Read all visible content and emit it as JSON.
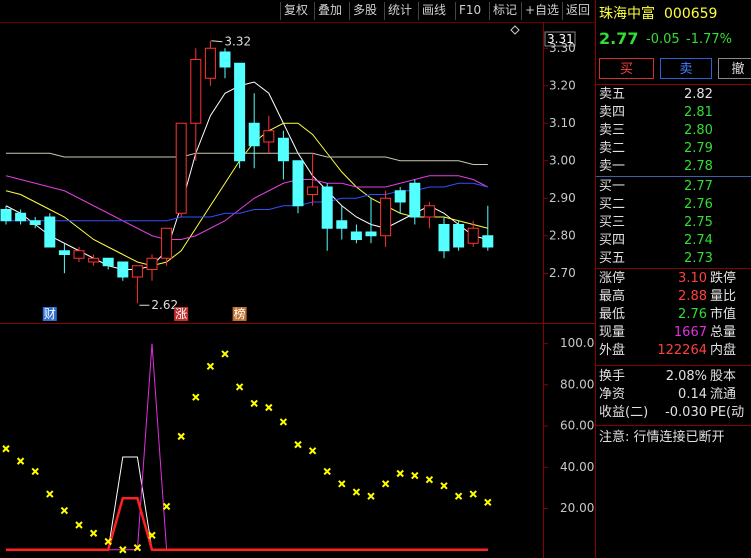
{
  "toolbar": [
    "复权",
    "叠加",
    "多股",
    "统计",
    "画线",
    "F10",
    "标记",
    "+自选",
    "返回"
  ],
  "stock": {
    "name": "珠海中富",
    "code": "000659",
    "price": "2.77",
    "change": "-0.05",
    "change_pct": "-1.77%"
  },
  "trade_buttons": [
    "买",
    "卖",
    "撤"
  ],
  "order_book": {
    "asks": [
      {
        "label": "卖五",
        "price": "2.82",
        "color": "#e0e0e0"
      },
      {
        "label": "卖四",
        "price": "2.81",
        "color": "#33dd33"
      },
      {
        "label": "卖三",
        "price": "2.80",
        "color": "#33dd33"
      },
      {
        "label": "卖二",
        "price": "2.79",
        "color": "#33dd33"
      },
      {
        "label": "卖一",
        "price": "2.78",
        "color": "#33dd33"
      }
    ],
    "bids": [
      {
        "label": "买一",
        "price": "2.77",
        "color": "#33dd33"
      },
      {
        "label": "买二",
        "price": "2.76",
        "color": "#33dd33"
      },
      {
        "label": "买三",
        "price": "2.75",
        "color": "#33dd33"
      },
      {
        "label": "买四",
        "price": "2.74",
        "color": "#33dd33"
      },
      {
        "label": "买五",
        "price": "2.73",
        "color": "#33dd33"
      }
    ]
  },
  "stats": [
    [
      {
        "label": "涨停",
        "value": "3.10",
        "color": "#ff4040",
        "label2": "跌停"
      },
      {
        "label": "最高",
        "value": "2.88",
        "color": "#ff4040",
        "label2": "量比"
      },
      {
        "label": "最低",
        "value": "2.76",
        "color": "#33dd33",
        "label2": "市值"
      },
      {
        "label": "现量",
        "value": "1667",
        "color": "#dd33dd",
        "label2": "总量"
      },
      {
        "label": "外盘",
        "value": "122264",
        "color": "#ff4040",
        "label2": "内盘"
      }
    ],
    [
      {
        "label": "换手",
        "value": "2.08%",
        "color": "#e0e0e0",
        "label2": "股本"
      },
      {
        "label": "净资",
        "value": "0.14",
        "color": "#e0e0e0",
        "label2": "流通"
      },
      {
        "label": "收益(二)",
        "value": "-0.030",
        "color": "#e0e0e0",
        "label2": "PE(动"
      }
    ]
  ],
  "notice": "注意: 行情连接已断开",
  "kline": {
    "ylim": [
      2.57,
      3.37
    ],
    "yticks": [
      {
        "value": 3.3,
        "label": "3.30"
      },
      {
        "value": 3.2,
        "label": "3.20"
      },
      {
        "value": 3.1,
        "label": "3.10"
      },
      {
        "value": 3,
        "label": "3.00"
      },
      {
        "value": 2.9,
        "label": "2.90"
      },
      {
        "value": 2.8,
        "label": "2.80"
      },
      {
        "value": 2.7,
        "label": "2.70"
      }
    ],
    "price_tag": "3.31",
    "up_color": "#ff3232",
    "down_color": "#54ffff",
    "candles": [
      {
        "open": 2.87,
        "close": 2.84,
        "high": 2.88,
        "low": 2.83
      },
      {
        "open": 2.86,
        "close": 2.84,
        "high": 2.87,
        "low": 2.83
      },
      {
        "open": 2.84,
        "close": 2.83,
        "high": 2.85,
        "low": 2.82
      },
      {
        "open": 2.85,
        "close": 2.77,
        "high": 2.86,
        "low": 2.77
      },
      {
        "open": 2.76,
        "close": 2.75,
        "high": 2.78,
        "low": 2.7
      },
      {
        "open": 2.74,
        "close": 2.76,
        "high": 2.77,
        "low": 2.73
      },
      {
        "open": 2.73,
        "close": 2.74,
        "high": 2.75,
        "low": 2.72
      },
      {
        "open": 2.74,
        "close": 2.72,
        "high": 2.74,
        "low": 2.71
      },
      {
        "open": 2.73,
        "close": 2.69,
        "high": 2.73,
        "low": 2.68
      },
      {
        "open": 2.69,
        "close": 2.72,
        "high": 2.72,
        "low": 2.62
      },
      {
        "open": 2.71,
        "close": 2.74,
        "high": 2.75,
        "low": 2.68
      },
      {
        "open": 2.74,
        "close": 2.82,
        "high": 2.82,
        "low": 2.72
      },
      {
        "open": 2.86,
        "close": 3.1,
        "high": 3.1,
        "low": 2.85
      },
      {
        "open": 3.1,
        "close": 3.27,
        "high": 3.3,
        "low": 3.0
      },
      {
        "open": 3.22,
        "close": 3.3,
        "high": 3.32,
        "low": 3.2
      },
      {
        "open": 3.29,
        "close": 3.25,
        "high": 3.3,
        "low": 3.22
      },
      {
        "open": 3.26,
        "close": 3.0,
        "high": 3.26,
        "low": 2.98
      },
      {
        "open": 3.1,
        "close": 3.04,
        "high": 3.18,
        "low": 2.98
      },
      {
        "open": 3.05,
        "close": 3.08,
        "high": 3.12,
        "low": 3.02
      },
      {
        "open": 3.06,
        "close": 3.0,
        "high": 3.08,
        "low": 2.95
      },
      {
        "open": 3.0,
        "close": 2.88,
        "high": 3.0,
        "low": 2.86
      },
      {
        "open": 2.91,
        "close": 2.93,
        "high": 3.02,
        "low": 2.88
      },
      {
        "open": 2.93,
        "close": 2.82,
        "high": 2.94,
        "low": 2.76
      },
      {
        "open": 2.84,
        "close": 2.82,
        "high": 2.88,
        "low": 2.79
      },
      {
        "open": 2.81,
        "close": 2.79,
        "high": 2.83,
        "low": 2.78
      },
      {
        "open": 2.81,
        "close": 2.8,
        "high": 2.9,
        "low": 2.78
      },
      {
        "open": 2.8,
        "close": 2.9,
        "high": 2.92,
        "low": 2.77
      },
      {
        "open": 2.92,
        "close": 2.89,
        "high": 2.93,
        "low": 2.86
      },
      {
        "open": 2.94,
        "close": 2.85,
        "high": 2.95,
        "low": 2.83
      },
      {
        "open": 2.85,
        "close": 2.88,
        "high": 2.89,
        "low": 2.82
      },
      {
        "open": 2.83,
        "close": 2.76,
        "high": 2.85,
        "low": 2.74
      },
      {
        "open": 2.83,
        "close": 2.77,
        "high": 2.84,
        "low": 2.76
      },
      {
        "open": 2.78,
        "close": 2.82,
        "high": 2.84,
        "low": 2.77
      },
      {
        "open": 2.8,
        "close": 2.77,
        "high": 2.88,
        "low": 2.76
      }
    ],
    "ma": [
      {
        "color": "#ffffff",
        "values": [
          2.88,
          2.86,
          2.83,
          2.8,
          2.78,
          2.76,
          2.74,
          2.72,
          2.71,
          2.71,
          2.72,
          2.76,
          2.88,
          3.02,
          3.12,
          3.18,
          3.2,
          3.21,
          3.18,
          3.1,
          3.02,
          2.96,
          2.92,
          2.88,
          2.85,
          2.83,
          2.82,
          2.84,
          2.86,
          2.88,
          2.86,
          2.83,
          2.8,
          2.79
        ]
      },
      {
        "color": "#ffff40",
        "values": [
          2.92,
          2.91,
          2.89,
          2.87,
          2.85,
          2.82,
          2.79,
          2.77,
          2.75,
          2.73,
          2.72,
          2.73,
          2.76,
          2.82,
          2.88,
          2.94,
          3.0,
          3.05,
          3.08,
          3.1,
          3.1,
          3.07,
          3.02,
          2.97,
          2.93,
          2.9,
          2.88,
          2.86,
          2.85,
          2.85,
          2.85,
          2.84,
          2.83,
          2.82
        ]
      },
      {
        "color": "#e040e0",
        "values": [
          2.96,
          2.95,
          2.94,
          2.93,
          2.92,
          2.9,
          2.88,
          2.86,
          2.84,
          2.82,
          2.8,
          2.79,
          2.79,
          2.8,
          2.82,
          2.84,
          2.87,
          2.9,
          2.92,
          2.94,
          2.95,
          2.95,
          2.94,
          2.94,
          2.93,
          2.93,
          2.93,
          2.94,
          2.95,
          2.96,
          2.96,
          2.96,
          2.95,
          2.93
        ]
      },
      {
        "color": "#3050ff",
        "values": [
          2.84,
          2.84,
          2.84,
          2.84,
          2.84,
          2.84,
          2.84,
          2.84,
          2.84,
          2.84,
          2.84,
          2.84,
          2.85,
          2.85,
          2.85,
          2.86,
          2.86,
          2.87,
          2.87,
          2.88,
          2.88,
          2.89,
          2.89,
          2.9,
          2.9,
          2.91,
          2.91,
          2.92,
          2.92,
          2.93,
          2.93,
          2.94,
          2.94,
          2.93
        ]
      },
      {
        "color": "#c8c8b0",
        "values": [
          3.02,
          3.02,
          3.02,
          3.02,
          3.01,
          3.01,
          3.01,
          3.01,
          3.01,
          3.01,
          3.01,
          3.01,
          3.01,
          3.02,
          3.02,
          3.02,
          3.02,
          3.02,
          3.02,
          3.02,
          3.02,
          3.02,
          3.01,
          3.01,
          3.01,
          3.01,
          3.01,
          3.0,
          3.0,
          3.0,
          3.0,
          3.0,
          2.99,
          2.99
        ]
      }
    ],
    "high_label": "3.32",
    "low_label": "2.62",
    "markers": [
      null,
      null,
      null,
      "财",
      null,
      null,
      null,
      null,
      null,
      null,
      null,
      null,
      "涨",
      null,
      null,
      null,
      "榜",
      null,
      null,
      null,
      null,
      null,
      null,
      null,
      null,
      null,
      null,
      null,
      null,
      null,
      null,
      null,
      null,
      null
    ],
    "marker_colors": [
      "#3070d0",
      "#c03030",
      "#c07030"
    ]
  },
  "indicator": {
    "ylim": [
      -4,
      110
    ],
    "yticks": [
      {
        "value": 100,
        "label": "100.0"
      },
      {
        "value": 80,
        "label": "80.00"
      },
      {
        "value": 60,
        "label": "60.00"
      },
      {
        "value": 40,
        "label": "40.00"
      },
      {
        "value": 20,
        "label": "20.00"
      }
    ],
    "points": {
      "color": "#ffff00",
      "values": [
        49,
        43,
        38,
        27,
        19,
        12,
        8,
        4,
        0,
        1,
        7,
        21,
        55,
        74,
        89,
        95,
        79,
        71,
        69,
        62,
        51,
        48,
        38,
        32,
        28,
        26,
        32,
        37,
        36,
        34,
        31,
        26,
        27,
        23
      ]
    },
    "lines": [
      {
        "color": "#ffffff",
        "values": [
          0,
          0,
          0,
          0,
          0,
          0,
          0,
          0,
          45,
          45,
          0,
          0,
          0,
          0,
          0,
          0,
          0,
          0,
          0,
          0,
          0,
          0,
          0,
          0,
          0,
          0,
          0,
          0,
          0,
          0,
          0,
          0,
          0,
          0
        ]
      },
      {
        "color": "#e030e0",
        "values": [
          0,
          0,
          0,
          0,
          0,
          0,
          0,
          0,
          0,
          0,
          100,
          0,
          0,
          0,
          0,
          0,
          0,
          0,
          0,
          0,
          0,
          0,
          0,
          0,
          0,
          0,
          0,
          0,
          0,
          0,
          0,
          0,
          0,
          0
        ]
      },
      {
        "color": "#ff2020",
        "values": [
          0,
          0,
          0,
          0,
          0,
          0,
          0,
          0,
          25,
          25,
          0,
          0,
          0,
          0,
          0,
          0,
          0,
          0,
          0,
          0,
          0,
          0,
          0,
          0,
          0,
          0,
          0,
          0,
          0,
          0,
          0,
          0,
          0,
          0
        ]
      }
    ]
  }
}
